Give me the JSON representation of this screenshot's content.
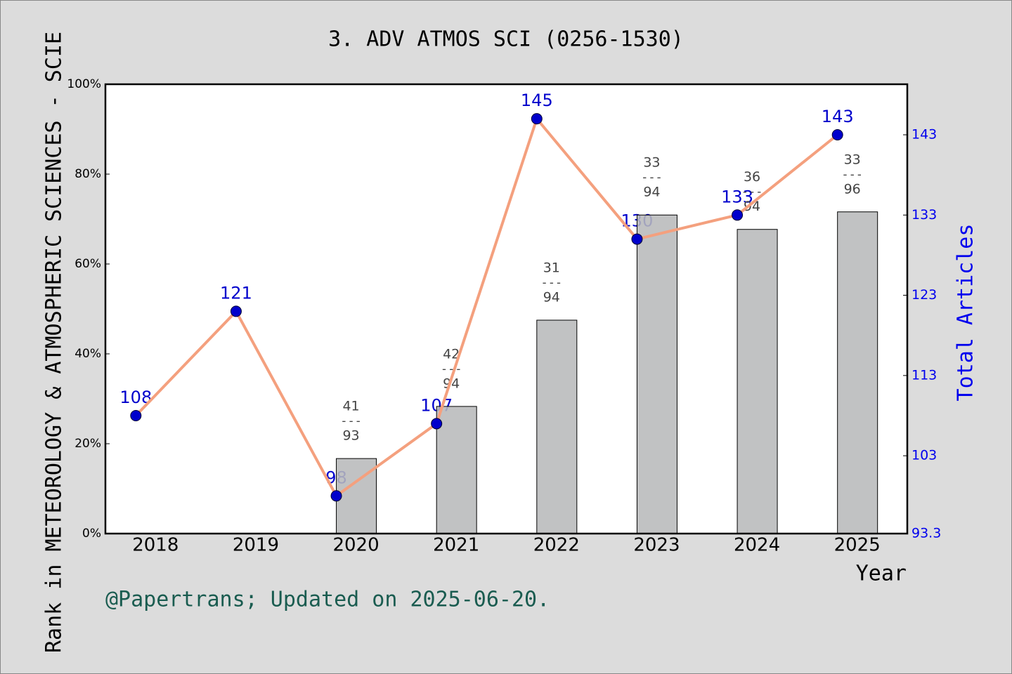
{
  "chart_data": {
    "type": "bar-line",
    "title": "3. ADV ATMOS SCI (0256-1530)",
    "y_label": "Rank in METEOROLOGY & ATMOSPHERIC SCIENCES - SCIE",
    "y2_label": "Total Articles",
    "x_label": "Year",
    "footnote": "@Papertrans; Updated on 2025-06-20.",
    "categories": [
      "2018",
      "2019",
      "2020",
      "2021",
      "2022",
      "2023",
      "2024",
      "2025"
    ],
    "ylim": [
      0,
      100
    ],
    "yticks": [
      {
        "value": 0,
        "label": "0%"
      },
      {
        "value": 20,
        "label": "20%"
      },
      {
        "value": 40,
        "label": "40%"
      },
      {
        "value": 60,
        "label": "60%"
      },
      {
        "value": 80,
        "label": "80%"
      },
      {
        "value": 100,
        "label": "100%"
      }
    ],
    "y2lim": [
      93.3,
      149.3
    ],
    "y2ticks": [
      93.3,
      103,
      113,
      123,
      133,
      143
    ],
    "series": [
      {
        "type": "bar",
        "color": "#b8b9bb",
        "values": [
          null,
          null,
          16.7,
          28.3,
          47.5,
          70.9,
          67.7,
          71.6
        ],
        "ranks": [
          null,
          null,
          41,
          42,
          31,
          33,
          36,
          33
        ],
        "totals": [
          null,
          null,
          93,
          94,
          94,
          94,
          94,
          96
        ],
        "separator": "---"
      },
      {
        "type": "line",
        "axis": "y2",
        "color": "#f4a07e",
        "marker_color": "#0000cc",
        "label_color": "#0000cc",
        "values": [
          108,
          121,
          98,
          107,
          145,
          130,
          133,
          143
        ]
      }
    ]
  }
}
